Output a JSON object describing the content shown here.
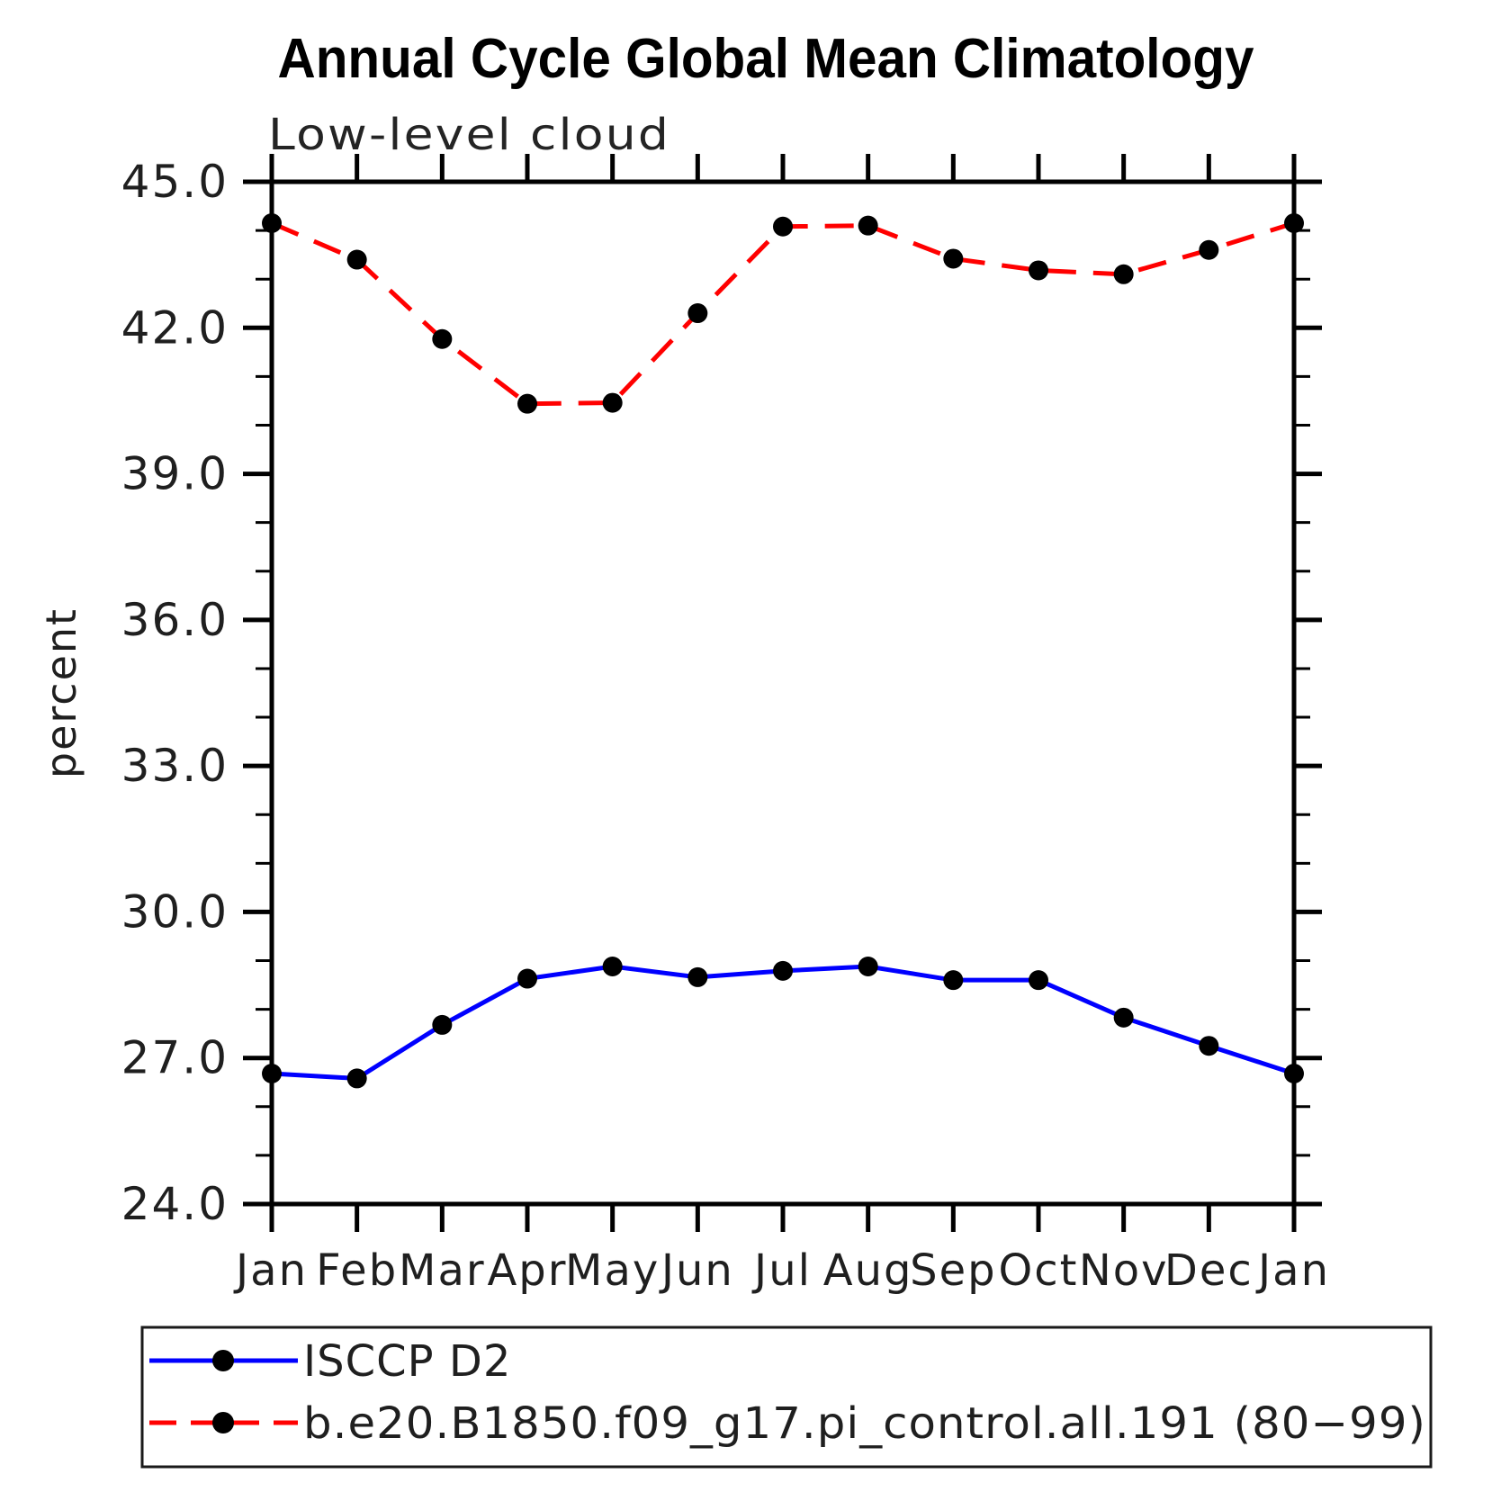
{
  "title": "Annual Cycle Global Mean Climatology",
  "subtitle": "Low-level cloud",
  "ylabel": "percent",
  "legend": {
    "position": "bottom",
    "entries": [
      {
        "label": "ISCCP D2"
      },
      {
        "label": "b.e20.B1850.f09_g17.pi_control.all.191 (80−99)"
      }
    ]
  },
  "chart_data": {
    "type": "line",
    "title": "Annual Cycle Global Mean Climatology",
    "subtitle": "Low-level cloud",
    "xlabel": "",
    "ylabel": "percent",
    "categories": [
      "Jan",
      "Feb",
      "Mar",
      "Apr",
      "May",
      "Jun",
      "Jul",
      "Aug",
      "Sep",
      "Oct",
      "Nov",
      "Dec",
      "Jan"
    ],
    "ylim": [
      24.0,
      45.0
    ],
    "ytick_major_interval": 3.0,
    "ytick_minor_interval": 1.0,
    "ytick_labels": [
      "24.0",
      "27.0",
      "30.0",
      "33.0",
      "36.0",
      "39.0",
      "42.0",
      "45.0"
    ],
    "grid": false,
    "legend_position": "bottom",
    "marker": "filled-circle",
    "marker_color": "#000000",
    "series": [
      {
        "name": "ISCCP D2",
        "color": "#0000ff",
        "line_style": "solid",
        "values": [
          26.68,
          26.58,
          27.68,
          28.63,
          28.88,
          28.66,
          28.79,
          28.88,
          28.6,
          28.6,
          27.83,
          27.25,
          26.68
        ]
      },
      {
        "name": "b.e20.B1850.f09_g17.pi_control.all.191 (80−99)",
        "color": "#ff0000",
        "line_style": "dashed",
        "values": [
          44.15,
          43.4,
          41.77,
          40.44,
          40.46,
          42.3,
          44.08,
          44.1,
          43.42,
          43.18,
          43.1,
          43.6,
          44.15
        ]
      }
    ]
  }
}
